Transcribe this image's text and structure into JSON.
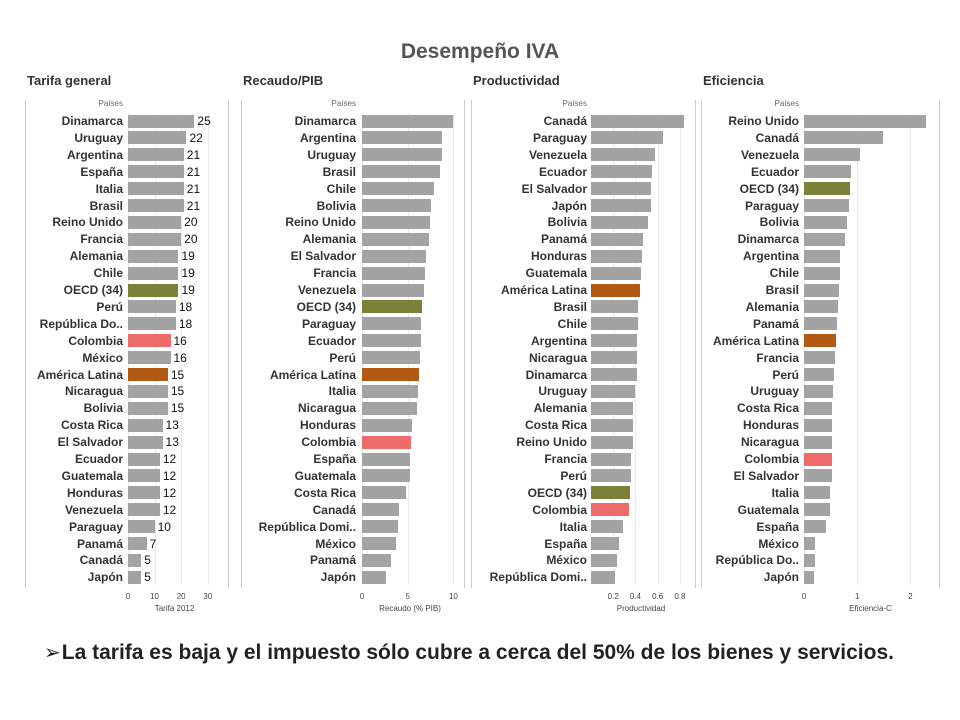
{
  "title": "Desempeño IVA",
  "caption": {
    "arrow": "➢",
    "text": "La tarifa es baja y el impuesto sólo cubre a cerca del 50% de los bienes y servicios."
  },
  "colors": {
    "default": "#a3a3a3",
    "oecd": "#7b8138",
    "colombia": "#ee6b6b",
    "america_latina": "#b25a13"
  },
  "chart_data": [
    {
      "type": "bar",
      "orientation": "horizontal",
      "title": "Tarifa general",
      "category_header": "Países",
      "xlabel": "Tarifa 2012",
      "xlim": [
        0,
        35
      ],
      "xticks": [
        0,
        10,
        20,
        30
      ],
      "show_value_labels": true,
      "categories": [
        "Dinamarca",
        "Uruguay",
        "Argentina",
        "España",
        "Italia",
        "Brasil",
        "Reino Unido",
        "Francia",
        "Alemania",
        "Chile",
        "OECD (34)",
        "Perú",
        "República Do..",
        "Colombia",
        "México",
        "América Latina",
        "Nicaragua",
        "Bolivia",
        "Costa Rica",
        "El Salvador",
        "Ecuador",
        "Guatemala",
        "Honduras",
        "Venezuela",
        "Paraguay",
        "Panamá",
        "Canadá",
        "Japón"
      ],
      "values": [
        25,
        22,
        21,
        21,
        21,
        21,
        20,
        20,
        19,
        19,
        19,
        18,
        18,
        16,
        16,
        15,
        15,
        15,
        13,
        13,
        12,
        12,
        12,
        12,
        10,
        7,
        5,
        5
      ]
    },
    {
      "type": "bar",
      "orientation": "horizontal",
      "title": "Recaudo/PIB",
      "category_header": "Países",
      "xlabel": "Recaudo (% PIB)",
      "xlim": [
        0,
        10.5
      ],
      "xticks": [
        0,
        5,
        10
      ],
      "show_value_labels": false,
      "categories": [
        "Dinamarca",
        "Argentina",
        "Uruguay",
        "Brasil",
        "Chile",
        "Bolivia",
        "Reino Unido",
        "Alemania",
        "El Salvador",
        "Francia",
        "Venezuela",
        "OECD (34)",
        "Paraguay",
        "Ecuador",
        "Perú",
        "América Latina",
        "Italia",
        "Nicaragua",
        "Honduras",
        "Colombia",
        "España",
        "Guatemala",
        "Costa Rica",
        "Canadá",
        "República Domi..",
        "México",
        "Panamá",
        "Japón"
      ],
      "values": [
        9.9,
        8.7,
        8.7,
        8.5,
        7.9,
        7.6,
        7.4,
        7.3,
        7.0,
        6.9,
        6.8,
        6.6,
        6.5,
        6.4,
        6.3,
        6.2,
        6.1,
        6.0,
        5.5,
        5.4,
        5.3,
        5.2,
        4.8,
        4.1,
        3.9,
        3.7,
        3.2,
        2.6
      ]
    },
    {
      "type": "bar",
      "orientation": "horizontal",
      "title": "Productividad",
      "category_header": "Países",
      "xlabel": "Productividad",
      "xlim": [
        0,
        0.9
      ],
      "xticks": [
        0.2,
        0.4,
        0.6,
        0.8
      ],
      "tick_labels": [
        "0.2",
        "0.4",
        "0.6",
        "0.8"
      ],
      "show_value_labels": false,
      "categories": [
        "Canadá",
        "Paraguay",
        "Venezuela",
        "Ecuador",
        "El Salvador",
        "Japón",
        "Bolivia",
        "Panamá",
        "Honduras",
        "Guatemala",
        "América Latina",
        "Brasil",
        "Chile",
        "Argentina",
        "Nicaragua",
        "Dinamarca",
        "Uruguay",
        "Alemania",
        "Costa Rica",
        "Reino Unido",
        "Francia",
        "Perú",
        "OECD (34)",
        "Colombia",
        "Italia",
        "España",
        "México",
        "República Domi.."
      ],
      "values": [
        0.84,
        0.65,
        0.58,
        0.55,
        0.54,
        0.54,
        0.51,
        0.47,
        0.46,
        0.45,
        0.44,
        0.42,
        0.42,
        0.41,
        0.41,
        0.41,
        0.4,
        0.38,
        0.38,
        0.38,
        0.36,
        0.36,
        0.35,
        0.34,
        0.29,
        0.25,
        0.23,
        0.22
      ]
    },
    {
      "type": "bar",
      "orientation": "horizontal",
      "title": "Eficiencia",
      "category_header": "Países",
      "xlabel": "Eficiencia-C",
      "xlim": [
        0,
        2.5
      ],
      "xticks": [
        0,
        1,
        2
      ],
      "show_value_labels": false,
      "categories": [
        "Reino Unido",
        "Canadá",
        "Venezuela",
        "Ecuador",
        "OECD (34)",
        "Paraguay",
        "Bolivia",
        "Dinamarca",
        "Argentina",
        "Chile",
        "Brasil",
        "Alemania",
        "Panamá",
        "América Latina",
        "Francia",
        "Perú",
        "Uruguay",
        "Costa Rica",
        "Honduras",
        "Nicaragua",
        "Colombia",
        "El Salvador",
        "Italia",
        "Guatemala",
        "España",
        "México",
        "República Do..",
        "Japón"
      ],
      "values": [
        2.3,
        1.48,
        1.05,
        0.88,
        0.86,
        0.84,
        0.81,
        0.78,
        0.68,
        0.67,
        0.66,
        0.64,
        0.62,
        0.6,
        0.58,
        0.56,
        0.55,
        0.53,
        0.53,
        0.53,
        0.53,
        0.52,
        0.49,
        0.48,
        0.41,
        0.21,
        0.21,
        0.18
      ]
    }
  ]
}
